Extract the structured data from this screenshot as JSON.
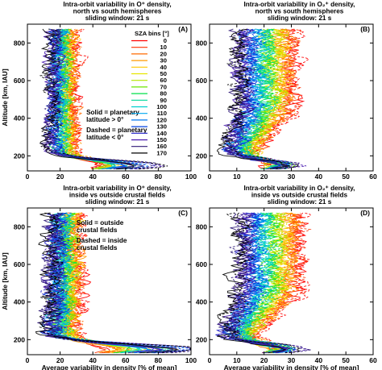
{
  "chart_data": [
    {
      "type": "line",
      "panel_label": "(A)",
      "title_lines": [
        "Intra-orbit variability in O⁺ density,",
        "north vs south hemispheres",
        "sliding window: 21 s"
      ],
      "xlabel": "",
      "ylabel": "Altitude [km, IAU]",
      "xlim": [
        0,
        100
      ],
      "ylim": [
        120,
        900
      ],
      "x_ticks": [
        "0",
        "20",
        "40",
        "60",
        "80",
        "100"
      ],
      "y_ticks": [
        "200",
        "400",
        "600",
        "800"
      ],
      "legend": {
        "title": "SZA bins [°]",
        "placement": "top-right",
        "entries": [
          {
            "label": "0",
            "color": "#ff0000"
          },
          {
            "label": "10",
            "color": "#ff3000"
          },
          {
            "label": "20",
            "color": "#ff6a00"
          },
          {
            "label": "30",
            "color": "#ff9a00"
          },
          {
            "label": "40",
            "color": "#ffc800"
          },
          {
            "label": "50",
            "color": "#e6e600"
          },
          {
            "label": "60",
            "color": "#b4e600"
          },
          {
            "label": "70",
            "color": "#6ee600"
          },
          {
            "label": "80",
            "color": "#00e04a"
          },
          {
            "label": "90",
            "color": "#00d89a"
          },
          {
            "label": "100",
            "color": "#00d0d0"
          },
          {
            "label": "110",
            "color": "#00a8f0"
          },
          {
            "label": "120",
            "color": "#0078f0"
          },
          {
            "label": "130",
            "color": "#0040e0"
          },
          {
            "label": "140",
            "color": "#2020c8"
          },
          {
            "label": "150",
            "color": "#4818b0"
          },
          {
            "label": "160",
            "color": "#301a78"
          },
          {
            "label": "170",
            "color": "#000000"
          }
        ]
      },
      "notes": [
        "Solid = planetary",
        "latitude > 0°",
        "Dashed = planetary",
        "latitude < 0°"
      ],
      "profile_model": {
        "low_x": [
          28,
          12
        ],
        "high_x": [
          14,
          28
        ],
        "surge_x": 70,
        "noise": 4
      },
      "grid": false
    },
    {
      "type": "line",
      "panel_label": "(B)",
      "title_lines": [
        "Intra-orbit variability in O₂⁺ density,",
        "north vs south hemispheres",
        "sliding window: 21 s"
      ],
      "xlabel": "",
      "ylabel": "",
      "xlim": [
        0,
        60
      ],
      "ylim": [
        120,
        900
      ],
      "x_ticks": [
        "0",
        "10",
        "20",
        "30",
        "40",
        "50",
        "60"
      ],
      "y_ticks": [
        "200",
        "400",
        "600",
        "800"
      ],
      "profile_model": {
        "low_x": [
          16,
          6
        ],
        "high_x": [
          10,
          30
        ],
        "surge_x": 27,
        "noise": 3
      },
      "grid": false
    },
    {
      "type": "line",
      "panel_label": "(C)",
      "title_lines": [
        "Intra-orbit variability in O⁺ density,",
        "inside vs outside crustal fields",
        "sliding window: 21 s"
      ],
      "xlabel": "Average variability in density [% of mean]",
      "ylabel": "Altitude [km, IAU]",
      "xlim": [
        0,
        100
      ],
      "ylim": [
        120,
        900
      ],
      "x_ticks": [
        "0",
        "20",
        "40",
        "60",
        "80",
        "100"
      ],
      "y_ticks": [
        "200",
        "400",
        "600",
        "800"
      ],
      "notes": [
        "Solid = outside",
        "crustal fields",
        "Dashed = inside",
        "crustal fields"
      ],
      "profile_model": {
        "low_x": [
          28,
          12
        ],
        "high_x": [
          14,
          30
        ],
        "surge_x": 95,
        "noise": 5
      },
      "grid": false
    },
    {
      "type": "line",
      "panel_label": "(D)",
      "title_lines": [
        "Intra-orbit variability in O₂⁺ density,",
        "inside vs outside crustal fields",
        "sliding window: 21 s"
      ],
      "xlabel": "Average variability in density [% of mean]",
      "ylabel": "",
      "xlim": [
        0,
        60
      ],
      "ylim": [
        120,
        900
      ],
      "x_ticks": [
        "0",
        "10",
        "20",
        "30",
        "40",
        "50",
        "60"
      ],
      "y_ticks": [
        "200",
        "400",
        "600",
        "800"
      ],
      "profile_model": {
        "low_x": [
          16,
          5
        ],
        "high_x": [
          10,
          32
        ],
        "surge_x": 28,
        "noise": 3
      },
      "grid": false
    }
  ]
}
